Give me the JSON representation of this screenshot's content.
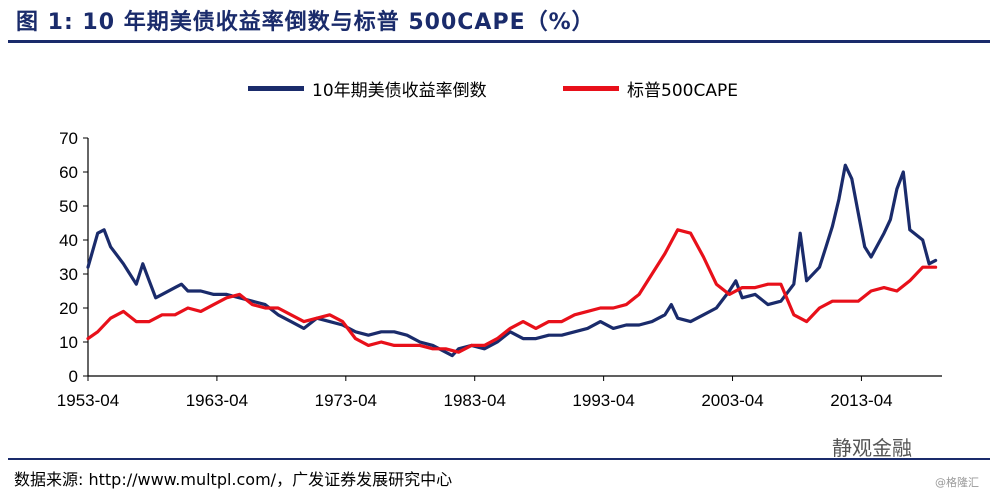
{
  "title": "图 1:  10 年期美债收益率倒数与标普 500CAPE（%）",
  "source": "数据来源:   http://www.multpl.com/，广发证券发展研究中心",
  "watermark": "静观金融",
  "watermark_sub": "@格隆汇",
  "chart_data": {
    "type": "line",
    "title": "",
    "xlabel": "",
    "ylabel": "",
    "x_ticks": [
      "1953-04",
      "1963-04",
      "1973-04",
      "1983-04",
      "1993-04",
      "2003-04",
      "2013-04"
    ],
    "xlim": [
      1953.25,
      2019.5
    ],
    "ylim": [
      0,
      70
    ],
    "y_ticks": [
      0,
      10,
      20,
      30,
      40,
      50,
      60,
      70
    ],
    "grid": false,
    "legend_position": "top-center",
    "series": [
      {
        "name": "10年期美债收益率倒数",
        "color": "#1a2b6b",
        "x": [
          1953.25,
          1954.0,
          1954.5,
          1955.0,
          1956.0,
          1957.0,
          1957.5,
          1958.0,
          1958.5,
          1959.0,
          1960.0,
          1960.5,
          1961.0,
          1962.0,
          1963.0,
          1964.0,
          1965.0,
          1966.0,
          1967.0,
          1968.0,
          1969.0,
          1970.0,
          1971.0,
          1972.0,
          1973.0,
          1974.0,
          1975.0,
          1976.0,
          1977.0,
          1978.0,
          1979.0,
          1980.0,
          1981.0,
          1981.5,
          1982.0,
          1983.0,
          1984.0,
          1985.0,
          1986.0,
          1987.0,
          1988.0,
          1989.0,
          1990.0,
          1991.0,
          1992.0,
          1993.0,
          1994.0,
          1995.0,
          1996.0,
          1997.0,
          1998.0,
          1998.5,
          1999.0,
          2000.0,
          2001.0,
          2002.0,
          2003.0,
          2003.5,
          2004.0,
          2005.0,
          2006.0,
          2007.0,
          2008.0,
          2008.5,
          2009.0,
          2010.0,
          2010.5,
          2011.0,
          2011.5,
          2012.0,
          2012.5,
          2013.0,
          2013.5,
          2014.0,
          2015.0,
          2015.5,
          2016.0,
          2016.5,
          2017.0,
          2018.0,
          2018.5,
          2019.0
        ],
        "y": [
          32,
          42,
          43,
          38,
          33,
          27,
          33,
          28,
          23,
          24,
          26,
          27,
          25,
          25,
          24,
          24,
          23,
          22,
          21,
          18,
          16,
          14,
          17,
          16,
          15,
          13,
          12,
          13,
          13,
          12,
          10,
          9,
          7,
          6,
          8,
          9,
          8,
          10,
          13,
          11,
          11,
          12,
          12,
          13,
          14,
          16,
          14,
          15,
          15,
          16,
          18,
          21,
          17,
          16,
          18,
          20,
          25,
          28,
          23,
          24,
          21,
          22,
          27,
          42,
          28,
          32,
          38,
          44,
          52,
          62,
          58,
          48,
          38,
          35,
          42,
          46,
          55,
          60,
          43,
          40,
          33,
          34
        ]
      },
      {
        "name": "标普500CAPE",
        "color": "#e8101a",
        "x": [
          1953.25,
          1954.0,
          1955.0,
          1956.0,
          1957.0,
          1958.0,
          1959.0,
          1960.0,
          1961.0,
          1962.0,
          1963.0,
          1964.0,
          1965.0,
          1966.0,
          1967.0,
          1968.0,
          1969.0,
          1970.0,
          1971.0,
          1972.0,
          1973.0,
          1974.0,
          1975.0,
          1976.0,
          1977.0,
          1978.0,
          1979.0,
          1980.0,
          1981.0,
          1982.0,
          1983.0,
          1984.0,
          1985.0,
          1986.0,
          1987.0,
          1988.0,
          1989.0,
          1990.0,
          1991.0,
          1992.0,
          1993.0,
          1994.0,
          1995.0,
          1996.0,
          1997.0,
          1998.0,
          1999.0,
          2000.0,
          2001.0,
          2002.0,
          2003.0,
          2004.0,
          2005.0,
          2006.0,
          2007.0,
          2008.0,
          2009.0,
          2010.0,
          2011.0,
          2012.0,
          2013.0,
          2014.0,
          2015.0,
          2016.0,
          2017.0,
          2018.0,
          2019.0
        ],
        "y": [
          11,
          13,
          17,
          19,
          16,
          16,
          18,
          18,
          20,
          19,
          21,
          23,
          24,
          21,
          20,
          20,
          18,
          16,
          17,
          18,
          16,
          11,
          9,
          10,
          9,
          9,
          9,
          8,
          8,
          7,
          9,
          9,
          11,
          14,
          16,
          14,
          16,
          16,
          18,
          19,
          20,
          20,
          21,
          24,
          30,
          36,
          43,
          42,
          35,
          27,
          24,
          26,
          26,
          27,
          27,
          18,
          16,
          20,
          22,
          22,
          22,
          25,
          26,
          25,
          28,
          32,
          32
        ]
      }
    ]
  }
}
